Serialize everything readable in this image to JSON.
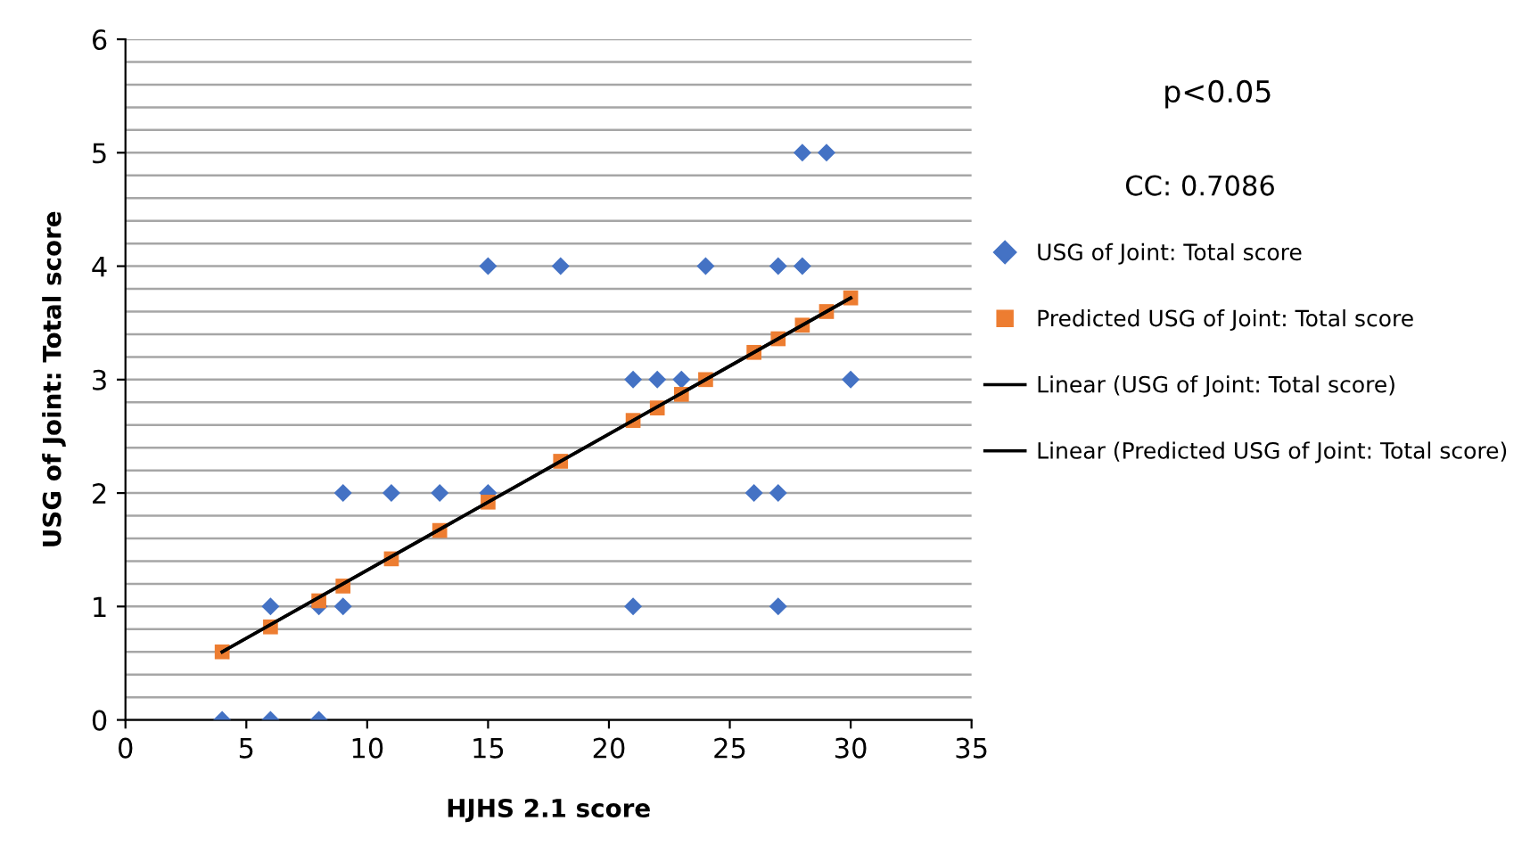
{
  "chart_data": {
    "type": "scatter",
    "xlabel": "HJHS 2.1 score",
    "ylabel": "USG of Joint: Total score",
    "xlim": [
      0,
      35
    ],
    "xticks": [
      0,
      5,
      10,
      15,
      20,
      25,
      30,
      35
    ],
    "ylim": [
      0,
      6
    ],
    "yticks": [
      0,
      {
        "value": 0.2,
        "label": null
      },
      {
        "value": 0.4,
        "label": null
      },
      {
        "value": 0.6,
        "label": null
      },
      {
        "value": 0.8,
        "label": null
      },
      1,
      {
        "value": 1.2,
        "label": null
      },
      {
        "value": 1.4,
        "label": null
      },
      {
        "value": 1.6,
        "label": null
      },
      {
        "value": 1.8,
        "label": null
      },
      2,
      {
        "value": 2.2,
        "label": null
      },
      {
        "value": 2.4,
        "label": null
      },
      {
        "value": 2.6,
        "label": null
      },
      {
        "value": 2.8,
        "label": null
      },
      3,
      {
        "value": 3.2,
        "label": null
      },
      {
        "value": 3.4,
        "label": null
      },
      {
        "value": 3.6,
        "label": null
      },
      {
        "value": 3.8,
        "label": null
      },
      4,
      {
        "value": 4.2,
        "label": null
      },
      {
        "value": 4.4,
        "label": null
      },
      {
        "value": 4.6,
        "label": null
      },
      {
        "value": 4.8,
        "label": null
      },
      5,
      {
        "value": 5.2,
        "label": null
      },
      {
        "value": 5.4,
        "label": null
      },
      {
        "value": 5.6,
        "label": null
      },
      {
        "value": 5.8,
        "label": null
      },
      6
    ],
    "grid": "y",
    "legend": "right",
    "annotations": [
      "p<0.05",
      "CC: 0.7086"
    ],
    "series": [
      {
        "name": "USG of Joint: Total score",
        "marker": "diamond",
        "color": "#4472c4",
        "x": [
          4,
          6,
          8,
          6,
          8,
          9,
          21,
          27,
          9,
          11,
          13,
          15,
          26,
          27,
          21,
          22,
          23,
          30,
          15,
          18,
          24,
          27,
          28,
          28,
          29
        ],
        "values": [
          0,
          0,
          0,
          1,
          1,
          1,
          1,
          1,
          2,
          2,
          2,
          2,
          2,
          2,
          3,
          3,
          3,
          3,
          4,
          4,
          4,
          4,
          4,
          5,
          5
        ]
      },
      {
        "name": "Predicted USG of Joint: Total score",
        "marker": "square",
        "color": "#ed7d31",
        "x": [
          4,
          6,
          8,
          9,
          11,
          13,
          15,
          18,
          21,
          22,
          23,
          24,
          26,
          27,
          28,
          29,
          30
        ],
        "values": [
          0.6,
          0.82,
          1.05,
          1.18,
          1.42,
          1.67,
          1.92,
          2.28,
          2.64,
          2.75,
          2.87,
          3.0,
          3.24,
          3.36,
          3.48,
          3.6,
          3.72
        ]
      },
      {
        "name": "Linear (USG of Joint: Total score)",
        "type": "line",
        "marker": "none",
        "line_style": "solid",
        "color": "#000000",
        "x": [
          4,
          30
        ],
        "values": [
          0.6,
          3.72
        ]
      },
      {
        "name": "Linear (Predicted USG of Joint: Total score)",
        "type": "line",
        "marker": "none",
        "line_style": "solid",
        "color": "#000000",
        "x": [
          4,
          30
        ],
        "values": [
          0.6,
          3.72
        ]
      }
    ]
  }
}
